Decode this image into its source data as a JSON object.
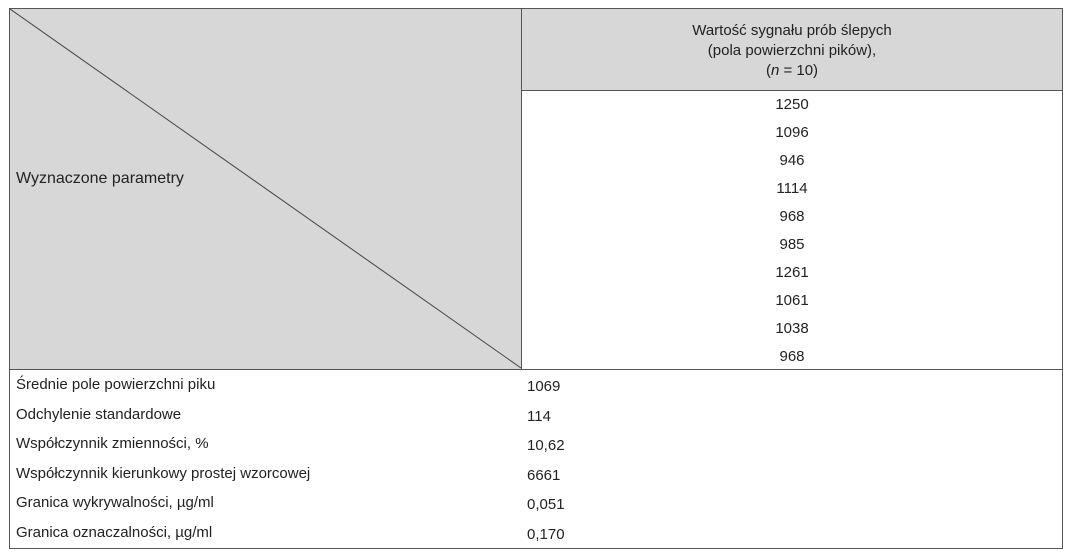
{
  "table": {
    "corner_label": "Wyznaczone parametry",
    "column_header": {
      "line1": "Wartość sygnału prób ślepych",
      "line2": "(pola powierzchni pików),",
      "line3_prefix": "(",
      "line3_var": "n",
      "line3_rest": " = 10)"
    },
    "blank_values": [
      "1250",
      "1096",
      "946",
      "1114",
      "968",
      "985",
      "1261",
      "1061",
      "1038",
      "968"
    ],
    "stats": [
      {
        "label": "Średnie pole powierzchni piku",
        "value": "1069"
      },
      {
        "label": "Odchylenie standardowe",
        "value": "114"
      },
      {
        "label": "Współczynnik zmienności, %",
        "value": "10,62"
      },
      {
        "label": "Współczynnik kierunkowy prostej wzorcowej",
        "value": "6661"
      },
      {
        "label": "Granica wykrywalności, µg/ml",
        "value": "0,051"
      },
      {
        "label": "Granica oznaczalności, µg/ml",
        "value": "0,170"
      }
    ]
  }
}
